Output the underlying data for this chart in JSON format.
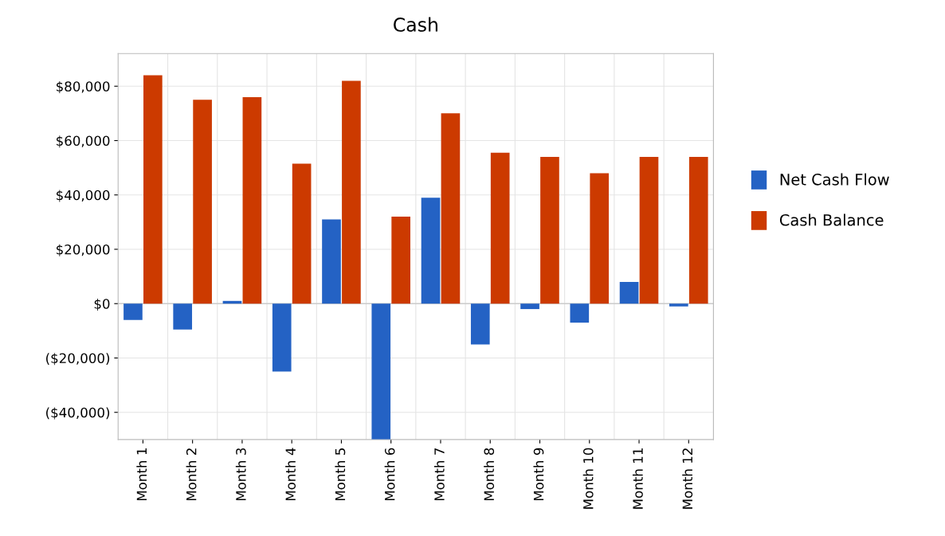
{
  "chart_data": {
    "type": "bar",
    "title": "Cash",
    "categories": [
      "Month 1",
      "Month 2",
      "Month 3",
      "Month 4",
      "Month 5",
      "Month 6",
      "Month 7",
      "Month 8",
      "Month 9",
      "Month 10",
      "Month 11",
      "Month 12"
    ],
    "series": [
      {
        "name": "Net Cash Flow",
        "color": "#2462c4",
        "values": [
          -6000,
          -9500,
          1000,
          -25000,
          31000,
          -50000,
          39000,
          -15000,
          -2000,
          -7000,
          8000,
          -1000
        ]
      },
      {
        "name": "Cash Balance",
        "color": "#cc3a00",
        "values": [
          84000,
          75000,
          76000,
          51500,
          82000,
          32000,
          70000,
          55500,
          54000,
          48000,
          54000,
          54000
        ]
      }
    ],
    "ylim": [
      -50000,
      92000
    ],
    "yticks": [
      {
        "value": -40000,
        "label": "($40,000)"
      },
      {
        "value": -20000,
        "label": "($20,000)"
      },
      {
        "value": 0,
        "label": "$0"
      },
      {
        "value": 20000,
        "label": "$20,000"
      },
      {
        "value": 40000,
        "label": "$40,000"
      },
      {
        "value": 60000,
        "label": "$60,000"
      },
      {
        "value": 80000,
        "label": "$80,000"
      }
    ],
    "grid": true,
    "legend": "right"
  }
}
